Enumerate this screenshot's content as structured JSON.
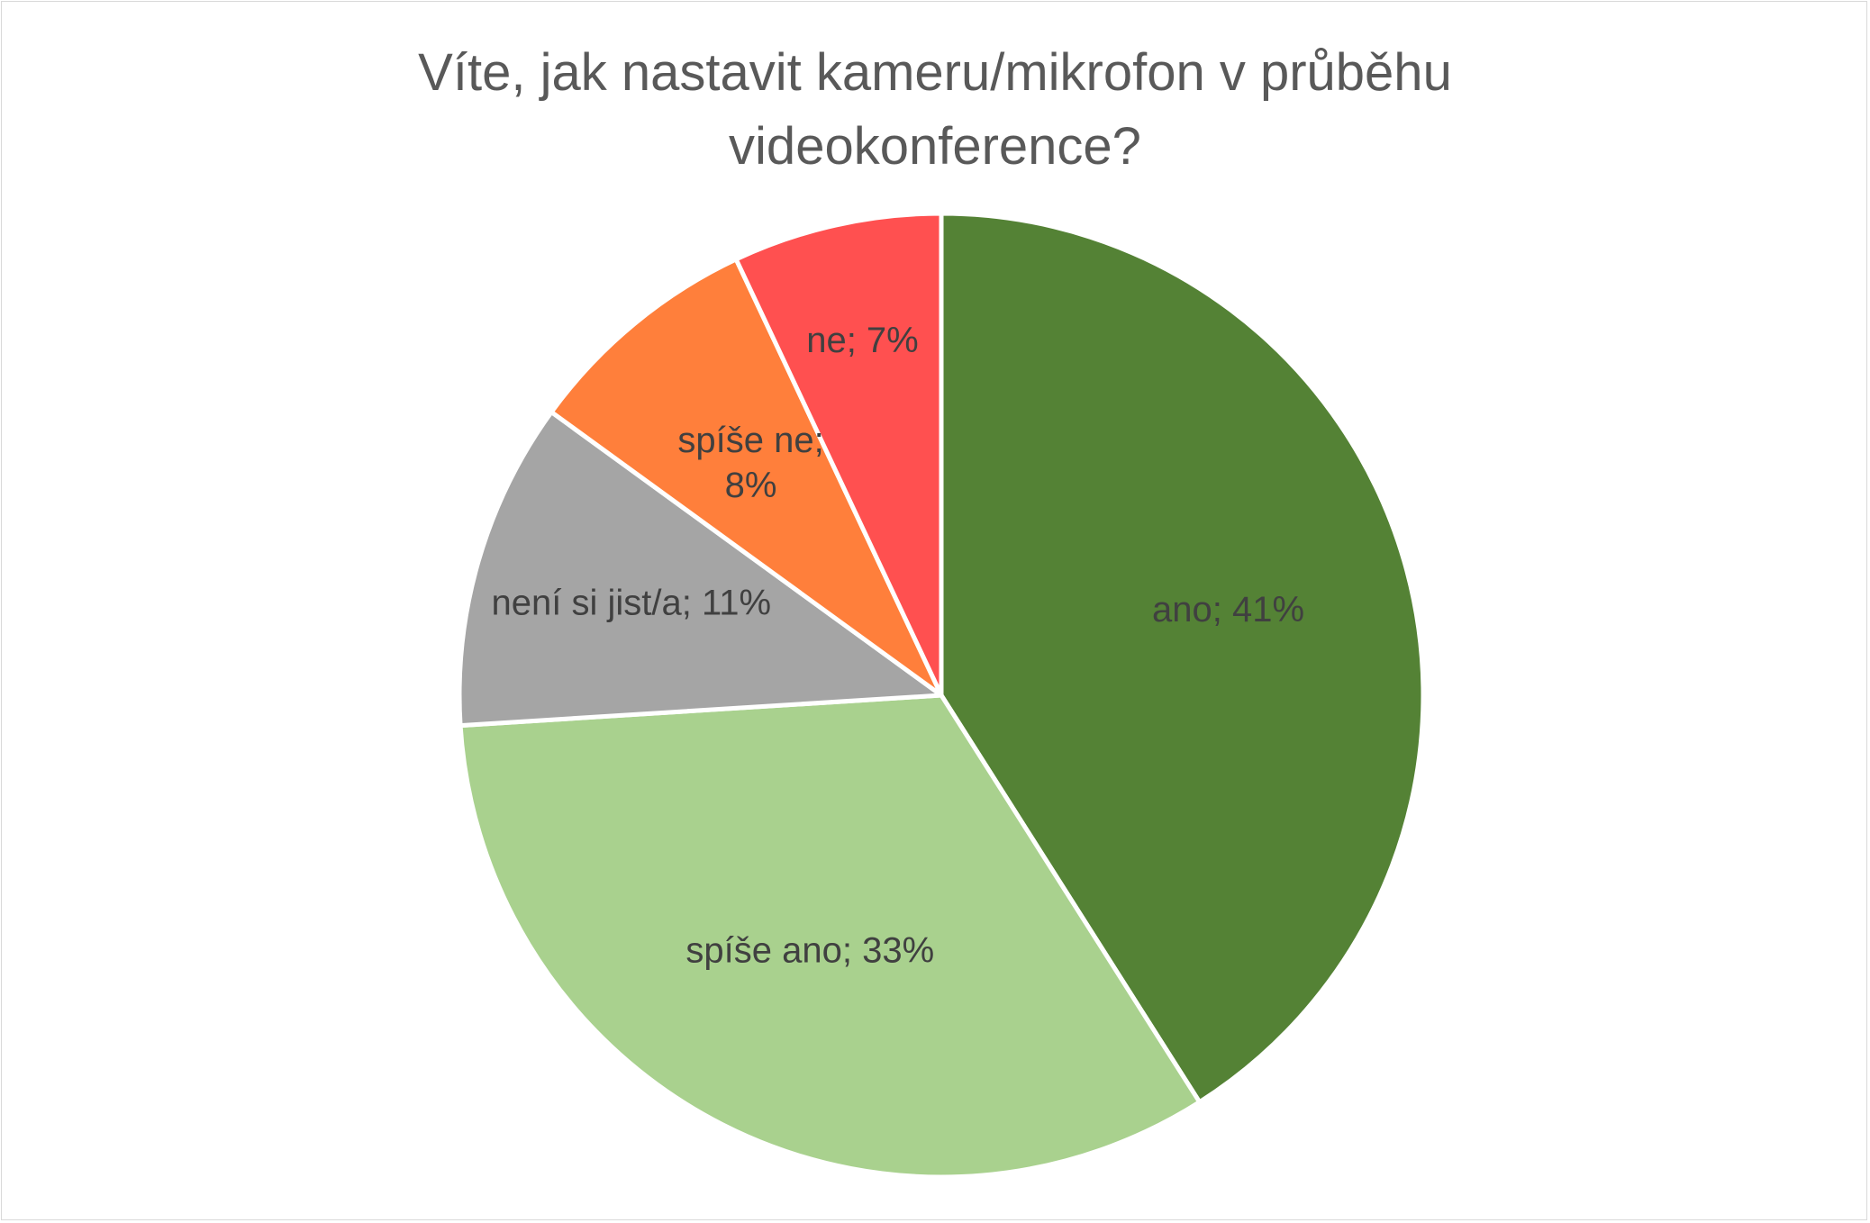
{
  "chart_data": {
    "type": "pie",
    "title_lines": [
      "Víte, jak nastavit kameru/mikrofon v průběhu",
      "videokonference?"
    ],
    "slices": [
      {
        "label": "ano",
        "value": 41,
        "display": "ano; 41%",
        "color": "#548235"
      },
      {
        "label": "spíše ano",
        "value": 33,
        "display": "spíše ano; 33%",
        "color": "#A9D18E"
      },
      {
        "label": "není si jist/a",
        "value": 11,
        "display": "není si jist/a; 11%",
        "color": "#A5A5A5"
      },
      {
        "label": "spíše ne",
        "value": 8,
        "display_lines": [
          "spíše ne;",
          "8%"
        ],
        "color": "#FF7F3B"
      },
      {
        "label": "ne",
        "value": 7,
        "display": "ne; 7%",
        "color": "#FF5050"
      }
    ],
    "start_angle": "12 o'clock",
    "direction": "clockwise",
    "legend": "none",
    "data_labels": "inside"
  }
}
